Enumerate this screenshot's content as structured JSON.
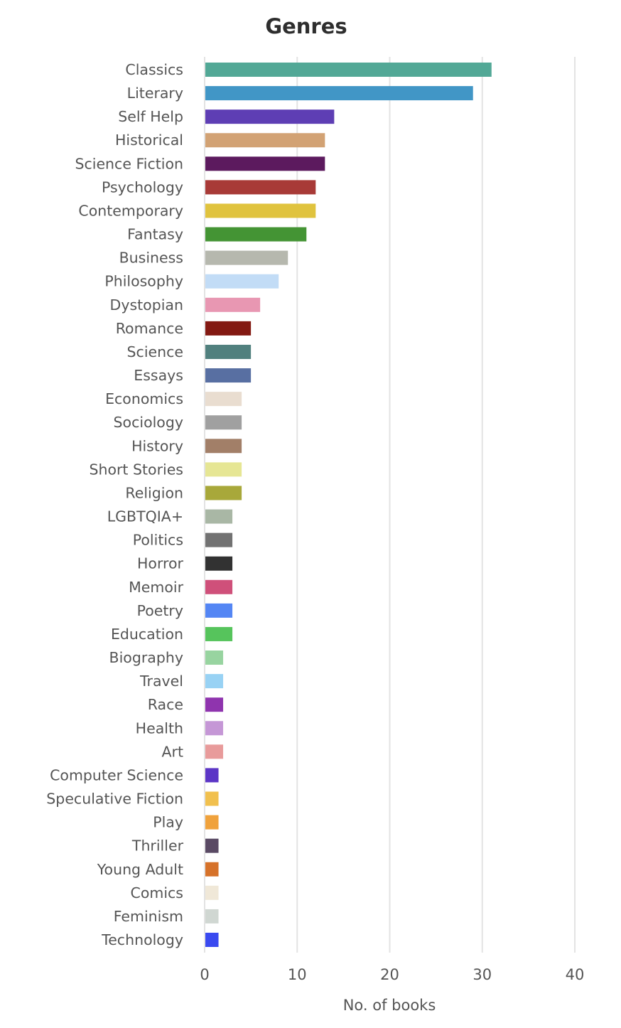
{
  "chart_data": {
    "type": "bar",
    "orientation": "horizontal",
    "title": "Genres",
    "xlabel": "No. of books",
    "ylabel": "",
    "xlim": [
      0,
      40
    ],
    "x_ticks": [
      0,
      10,
      20,
      30,
      40
    ],
    "grid": true,
    "categories": [
      "Classics",
      "Literary",
      "Self Help",
      "Historical",
      "Science Fiction",
      "Psychology",
      "Contemporary",
      "Fantasy",
      "Business",
      "Philosophy",
      "Dystopian",
      "Romance",
      "Science",
      "Essays",
      "Economics",
      "Sociology",
      "History",
      "Short Stories",
      "Religion",
      "LGBTQIA+",
      "Politics",
      "Horror",
      "Memoir",
      "Poetry",
      "Education",
      "Biography",
      "Travel",
      "Race",
      "Health",
      "Art",
      "Computer Science",
      "Speculative Fiction",
      "Play",
      "Thriller",
      "Young Adult",
      "Comics",
      "Feminism",
      "Technology"
    ],
    "values": [
      31,
      29,
      14,
      13,
      13,
      12,
      12,
      11,
      9,
      8,
      6,
      5,
      5,
      5,
      4,
      4,
      4,
      4,
      4,
      3,
      3,
      3,
      3,
      3,
      3,
      2,
      2,
      2,
      2,
      2,
      1.5,
      1.5,
      1.5,
      1.5,
      1.5,
      1.5,
      1.5,
      1.5
    ],
    "colors": [
      "#52a896",
      "#4196c6",
      "#5e3eb4",
      "#d2a274",
      "#5c1a5e",
      "#a83a37",
      "#e0c33e",
      "#449434",
      "#b6b8ae",
      "#c2dcf6",
      "#e897b2",
      "#831912",
      "#51807e",
      "#586fa2",
      "#e9ddd0",
      "#a0a0a0",
      "#a27f68",
      "#e6e694",
      "#a8a83a",
      "#a9b7a5",
      "#727272",
      "#323232",
      "#cf507a",
      "#5486f4",
      "#56c45c",
      "#98d4a0",
      "#98d2f4",
      "#8f34ae",
      "#c597d6",
      "#e89b9b",
      "#5c36c6",
      "#f1c04e",
      "#f0a23c",
      "#5a4a64",
      "#d6722a",
      "#f0e8d8",
      "#d0d7d2",
      "#3a4af0"
    ]
  }
}
